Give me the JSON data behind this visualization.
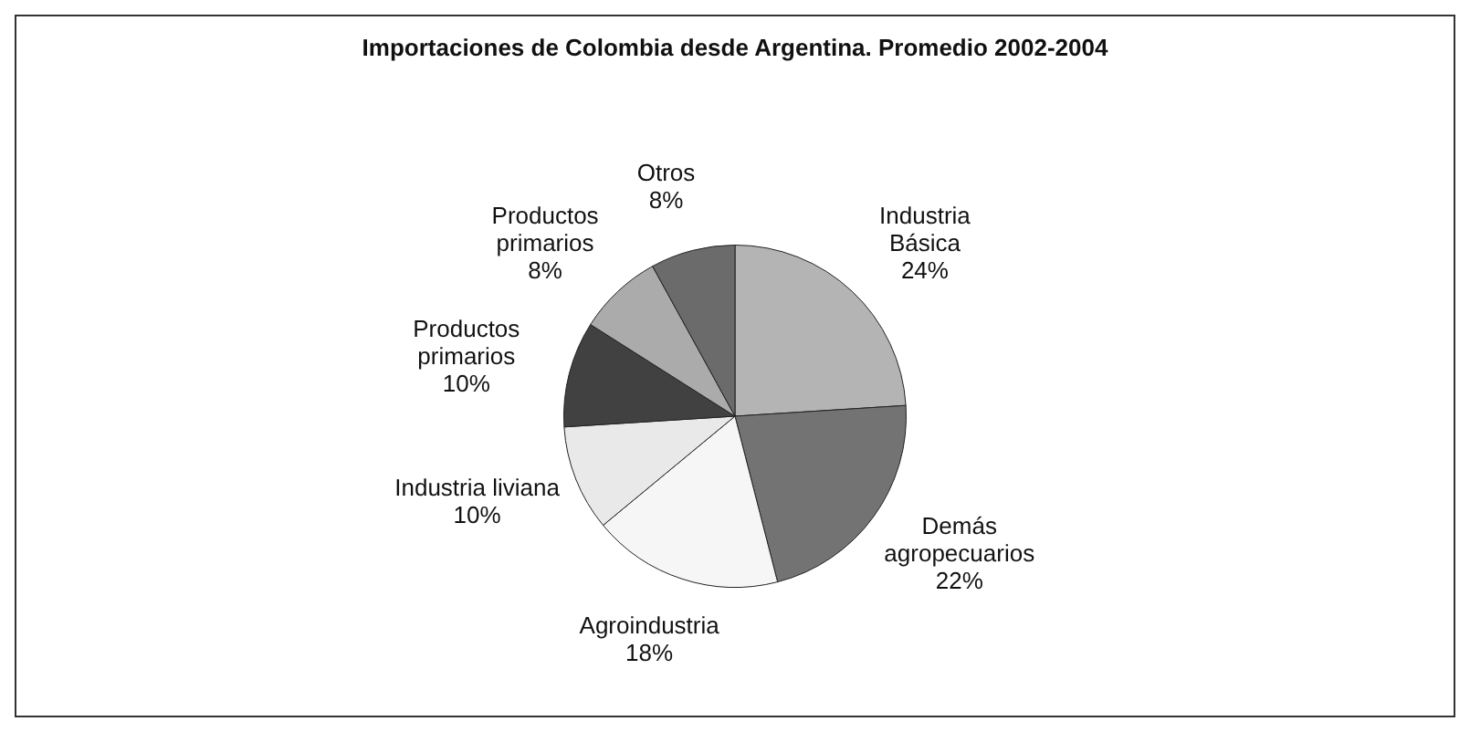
{
  "chart_data": {
    "type": "pie",
    "title": "Importaciones de Colombia desde Argentina. Promedio 2002-2004",
    "categories": [
      "Industria Básica",
      "Demás agropecuarios",
      "Agroindustria",
      "Industria liviana",
      "Productos primarios",
      "Productos primarios",
      "Otros"
    ],
    "values": [
      24,
      22,
      18,
      10,
      10,
      8,
      8
    ],
    "value_labels": [
      "24%",
      "22%",
      "18%",
      "10%",
      "10%",
      "8%",
      "8%"
    ],
    "colors": [
      "#b4b4b4",
      "#737373",
      "#f6f6f6",
      "#e9e9e9",
      "#414141",
      "#ababab",
      "#6b6b6b"
    ],
    "legend": false
  }
}
